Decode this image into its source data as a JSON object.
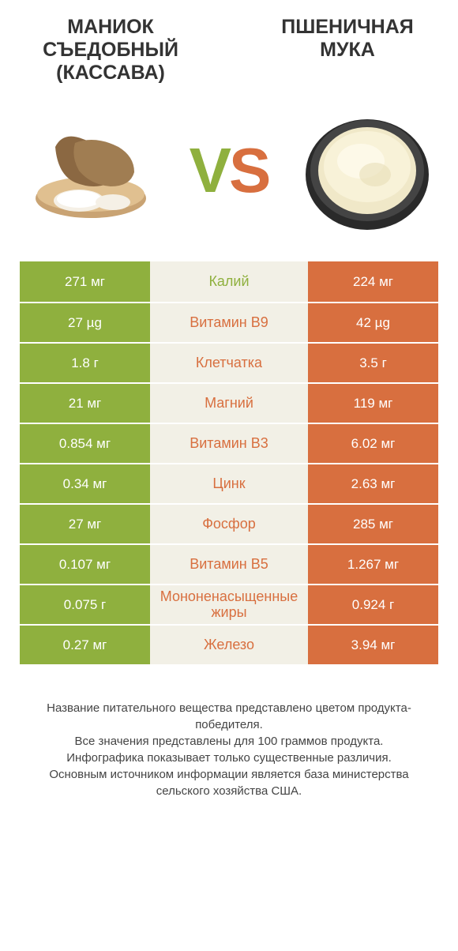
{
  "header": {
    "left_title": "МАНИОК СЪЕДОБНЫЙ (КАССАВА)",
    "right_title": "ПШЕНИЧНАЯ МУКА",
    "vs_v": "V",
    "vs_s": "S"
  },
  "colors": {
    "green": "#8fb03e",
    "orange": "#d86f3f",
    "mid_bg": "#f2f0e6",
    "title_color": "#333333",
    "footer_color": "#444444",
    "white": "#ffffff"
  },
  "table": {
    "rows": [
      {
        "left": "271 мг",
        "mid": "Калий",
        "right": "224 мг",
        "winner": "left"
      },
      {
        "left": "27 µg",
        "mid": "Витамин B9",
        "right": "42 µg",
        "winner": "right"
      },
      {
        "left": "1.8 г",
        "mid": "Клетчатка",
        "right": "3.5 г",
        "winner": "right"
      },
      {
        "left": "21 мг",
        "mid": "Магний",
        "right": "119 мг",
        "winner": "right"
      },
      {
        "left": "0.854 мг",
        "mid": "Витамин B3",
        "right": "6.02 мг",
        "winner": "right"
      },
      {
        "left": "0.34 мг",
        "mid": "Цинк",
        "right": "2.63 мг",
        "winner": "right"
      },
      {
        "left": "27 мг",
        "mid": "Фосфор",
        "right": "285 мг",
        "winner": "right"
      },
      {
        "left": "0.107 мг",
        "mid": "Витамин B5",
        "right": "1.267 мг",
        "winner": "right"
      },
      {
        "left": "0.075 г",
        "mid": "Мононенасыщенные жиры",
        "right": "0.924 г",
        "winner": "right"
      },
      {
        "left": "0.27 мг",
        "mid": "Железо",
        "right": "3.94 мг",
        "winner": "right"
      }
    ]
  },
  "footer": {
    "line1": "Название питательного вещества представлено цветом продукта-победителя.",
    "line2": "Все значения представлены для 100 граммов продукта.",
    "line3": "Инфографика показывает только существенные различия.",
    "line4": "Основным источником информации является база министерства сельского хозяйства США."
  }
}
